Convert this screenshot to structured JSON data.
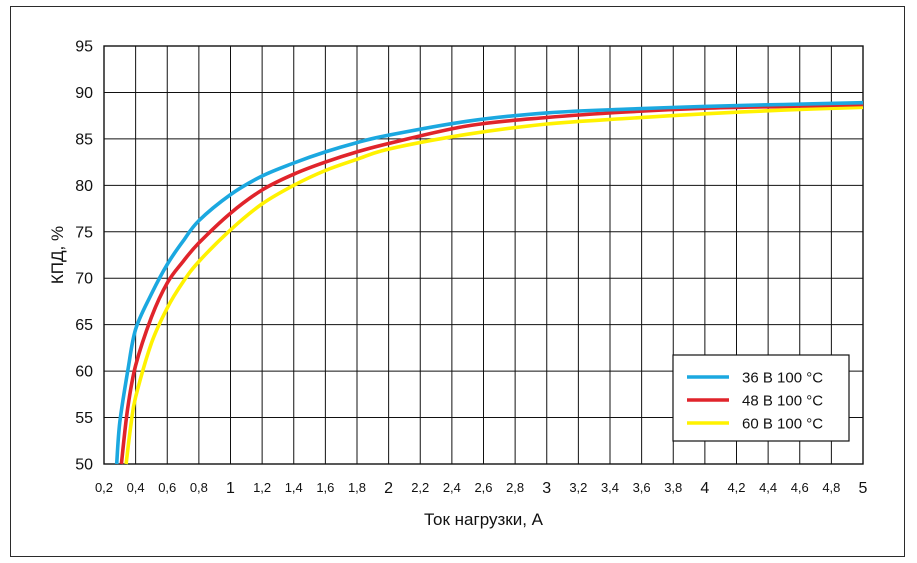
{
  "chart_data": {
    "type": "line",
    "xlabel": "Ток нагрузки, А",
    "ylabel": "КПД, %",
    "xlim": [
      0.2,
      5
    ],
    "ylim": [
      50,
      95
    ],
    "grid": true,
    "legend_position": "bottom-right",
    "x_ticks": [
      {
        "value": 0.2,
        "label": "0,2",
        "major": false
      },
      {
        "value": 0.4,
        "label": "0,4",
        "major": false
      },
      {
        "value": 0.6,
        "label": "0,6",
        "major": false
      },
      {
        "value": 0.8,
        "label": "0,8",
        "major": false
      },
      {
        "value": 1,
        "label": "1",
        "major": true
      },
      {
        "value": 1.2,
        "label": "1,2",
        "major": false
      },
      {
        "value": 1.4,
        "label": "1,4",
        "major": false
      },
      {
        "value": 1.6,
        "label": "1,6",
        "major": false
      },
      {
        "value": 1.8,
        "label": "1,8",
        "major": false
      },
      {
        "value": 2,
        "label": "2",
        "major": true
      },
      {
        "value": 2.2,
        "label": "2,2",
        "major": false
      },
      {
        "value": 2.4,
        "label": "2,4",
        "major": false
      },
      {
        "value": 2.6,
        "label": "2,6",
        "major": false
      },
      {
        "value": 2.8,
        "label": "2,8",
        "major": false
      },
      {
        "value": 3,
        "label": "3",
        "major": true
      },
      {
        "value": 3.2,
        "label": "3,2",
        "major": false
      },
      {
        "value": 3.4,
        "label": "3,4",
        "major": false
      },
      {
        "value": 3.6,
        "label": "3,6",
        "major": false
      },
      {
        "value": 3.8,
        "label": "3,8",
        "major": false
      },
      {
        "value": 4,
        "label": "4",
        "major": true
      },
      {
        "value": 4.2,
        "label": "4,2",
        "major": false
      },
      {
        "value": 4.4,
        "label": "4,4",
        "major": false
      },
      {
        "value": 4.6,
        "label": "4,6",
        "major": false
      },
      {
        "value": 4.8,
        "label": "4,8",
        "major": false
      },
      {
        "value": 5,
        "label": "5",
        "major": true
      }
    ],
    "y_ticks": [
      {
        "value": 50,
        "label": "50"
      },
      {
        "value": 55,
        "label": "55"
      },
      {
        "value": 60,
        "label": "60"
      },
      {
        "value": 65,
        "label": "65"
      },
      {
        "value": 70,
        "label": "70"
      },
      {
        "value": 75,
        "label": "75"
      },
      {
        "value": 80,
        "label": "80"
      },
      {
        "value": 85,
        "label": "85"
      },
      {
        "value": 90,
        "label": "90"
      },
      {
        "value": 95,
        "label": "95"
      }
    ],
    "series": [
      {
        "name": "36 В 100 °С",
        "color": "#1ba8e0",
        "x": [
          0.28,
          0.3,
          0.35,
          0.4,
          0.5,
          0.6,
          0.7,
          0.8,
          1.0,
          1.2,
          1.4,
          1.6,
          1.8,
          2.0,
          2.5,
          3.0,
          3.5,
          4.0,
          4.5,
          5.0
        ],
        "y": [
          50.0,
          54.5,
          60.0,
          64.5,
          68.3,
          71.5,
          74.0,
          76.2,
          79.0,
          81.0,
          82.4,
          83.6,
          84.6,
          85.4,
          86.9,
          87.8,
          88.2,
          88.5,
          88.7,
          88.9
        ]
      },
      {
        "name": "48 В 100 °С",
        "color": "#e0242b",
        "x": [
          0.31,
          0.35,
          0.4,
          0.5,
          0.6,
          0.7,
          0.8,
          1.0,
          1.2,
          1.4,
          1.6,
          1.8,
          2.0,
          2.5,
          3.0,
          3.5,
          4.0,
          4.5,
          5.0
        ],
        "y": [
          50.0,
          56.0,
          60.6,
          65.8,
          69.5,
          71.8,
          73.8,
          77.0,
          79.5,
          81.2,
          82.5,
          83.6,
          84.5,
          86.4,
          87.3,
          87.9,
          88.3,
          88.5,
          88.7
        ]
      },
      {
        "name": "60 В 100 °С",
        "color": "#fff200",
        "x": [
          0.34,
          0.37,
          0.4,
          0.5,
          0.6,
          0.7,
          0.8,
          1.0,
          1.2,
          1.4,
          1.6,
          1.8,
          2.0,
          2.5,
          3.0,
          3.5,
          4.0,
          4.5,
          5.0
        ],
        "y": [
          50.0,
          54.2,
          57.2,
          63.0,
          66.8,
          69.6,
          71.8,
          75.2,
          78.0,
          80.0,
          81.6,
          82.8,
          83.9,
          85.5,
          86.6,
          87.2,
          87.7,
          88.1,
          88.4
        ]
      }
    ]
  }
}
